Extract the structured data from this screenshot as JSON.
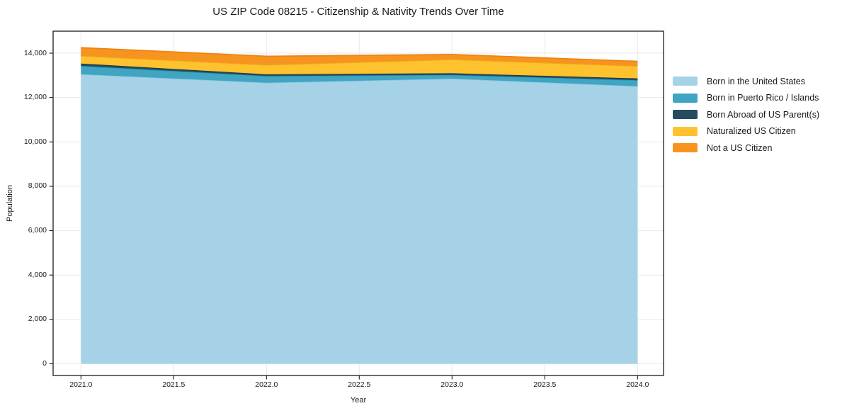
{
  "title": "US ZIP Code 08215 - Citizenship & Nativity Trends Over Time",
  "axes": {
    "xlabel": "Year",
    "ylabel": "Population",
    "x_ticks": [
      {
        "v": 2021.0,
        "label": "2021.0"
      },
      {
        "v": 2021.5,
        "label": "2021.5"
      },
      {
        "v": 2022.0,
        "label": "2022.0"
      },
      {
        "v": 2022.5,
        "label": "2022.5"
      },
      {
        "v": 2023.0,
        "label": "2023.0"
      },
      {
        "v": 2023.5,
        "label": "2023.5"
      },
      {
        "v": 2024.0,
        "label": "2024.0"
      }
    ],
    "y_ticks": [
      {
        "v": 0,
        "label": "0"
      },
      {
        "v": 2000,
        "label": "2,000"
      },
      {
        "v": 4000,
        "label": "4,000"
      },
      {
        "v": 6000,
        "label": "6,000"
      },
      {
        "v": 8000,
        "label": "8,000"
      },
      {
        "v": 10000,
        "label": "10,000"
      },
      {
        "v": 12000,
        "label": "12,000"
      },
      {
        "v": 14000,
        "label": "14,000"
      }
    ]
  },
  "legend": [
    {
      "label": "Born in the United States",
      "color": "#a6d2e7"
    },
    {
      "label": "Born in Puerto Rico / Islands",
      "color": "#3fa5c3"
    },
    {
      "label": "Born Abroad of US Parent(s)",
      "color": "#254c5e"
    },
    {
      "label": "Naturalized US Citizen",
      "color": "#fdc22e"
    },
    {
      "label": "Not a US Citizen",
      "color": "#f7941f"
    }
  ],
  "chart_data": {
    "type": "area",
    "stacked": true,
    "title": "US ZIP Code 08215 - Citizenship & Nativity Trends Over Time",
    "xlabel": "Year",
    "ylabel": "Population",
    "x": [
      2021,
      2022,
      2023,
      2024
    ],
    "xlim": [
      2020.85,
      2024.14
    ],
    "ylim": [
      -527,
      14990
    ],
    "grid": true,
    "legend_position": "right-outside",
    "series": [
      {
        "name": "Born in the United States",
        "color": "#a6d2e7",
        "edge": "#8cc4de",
        "values": [
          13050,
          12670,
          12850,
          12510
        ]
      },
      {
        "name": "Born in Puerto Rico / Islands",
        "color": "#3fa5c3",
        "edge": "#2e93b2",
        "values": [
          375,
          300,
          170,
          270
        ]
      },
      {
        "name": "Born Abroad of US Parent(s)",
        "color": "#254c5e",
        "edge": "#1a3c4b",
        "values": [
          105,
          75,
          75,
          85
        ]
      },
      {
        "name": "Naturalized US Citizen",
        "color": "#fdc22e",
        "edge": "#f1aa19",
        "values": [
          350,
          425,
          620,
          555
        ]
      },
      {
        "name": "Not a US Citizen",
        "color": "#f7941f",
        "edge": "#ec8412",
        "values": [
          365,
          390,
          225,
          210
        ]
      }
    ],
    "totals": [
      14245,
      13860,
      13940,
      13630
    ],
    "colors": {
      "grid": "#e9e9e9",
      "spine": "#1b1b1b",
      "background": "#ffffff"
    }
  }
}
